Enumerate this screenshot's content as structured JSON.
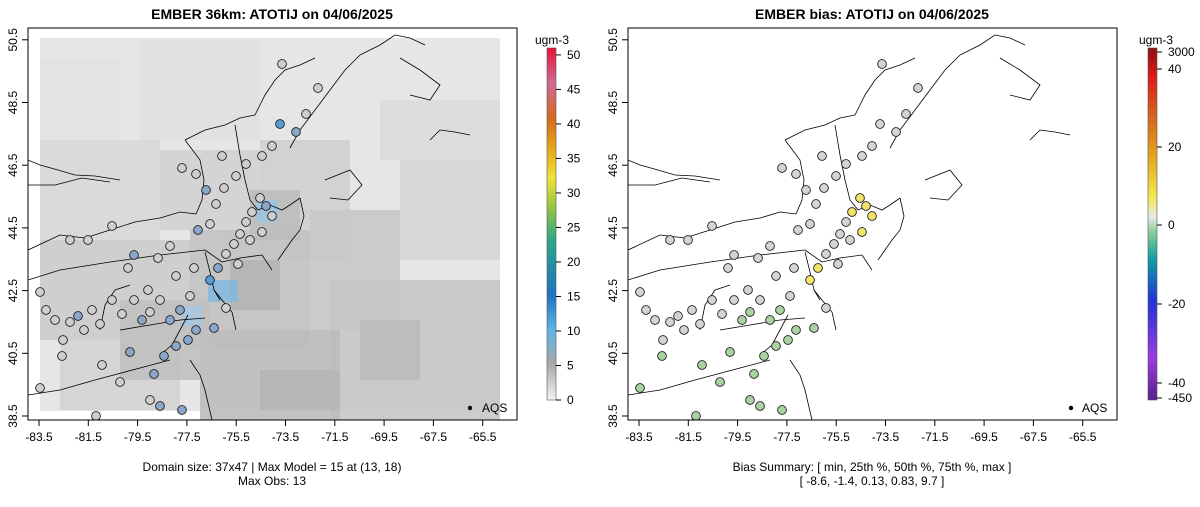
{
  "left_panel": {
    "title": "EMBER 36km: ATOTIJ on 04/06/2025",
    "x_ticks": [
      "-83.5",
      "-81.5",
      "-79.5",
      "-77.5",
      "-75.5",
      "-73.5",
      "-71.5",
      "-69.5",
      "-67.5",
      "-65.5"
    ],
    "y_ticks": [
      "38.5",
      "40.5",
      "42.5",
      "44.5",
      "46.5",
      "48.5",
      "50.5"
    ],
    "legend_label": "AQS",
    "caption_line1": "Domain size: 37x47 | Max Model = 15 at (13, 18)",
    "caption_line2": "Max Obs: 13",
    "colorbar": {
      "unit": "ugm-3",
      "ticks": [
        "0",
        "5",
        "10",
        "15",
        "20",
        "25",
        "30",
        "35",
        "40",
        "45",
        "50"
      ],
      "tick_values": [
        0,
        5,
        10,
        15,
        20,
        25,
        30,
        35,
        40,
        45,
        50
      ],
      "range": [
        0,
        51
      ]
    }
  },
  "right_panel": {
    "title": "EMBER bias: ATOTIJ on 04/06/2025",
    "x_ticks": [
      "-83.5",
      "-81.5",
      "-79.5",
      "-77.5",
      "-75.5",
      "-73.5",
      "-71.5",
      "-69.5",
      "-67.5",
      "-65.5"
    ],
    "y_ticks": [
      "38.5",
      "40.5",
      "42.5",
      "44.5",
      "46.5",
      "48.5",
      "50.5"
    ],
    "legend_label": "AQS",
    "caption_line1": "Bias Summary: [ min, 25th %, 50th %, 75th %, max ]",
    "caption_line2": "[ -8.6,   -1.4,   0.13,   0.83,   9.7 ]",
    "colorbar": {
      "unit": "ugm-3",
      "ticks": [
        "3000",
        "40",
        "20",
        "0",
        "-20",
        "-40",
        "-450"
      ]
    }
  },
  "colors": {
    "obs_low": "#cfcfcf",
    "obs_mid": "#8aa6c8",
    "obs_high": "#5b9bd5",
    "bias_pos": "#f2e36a",
    "bias_neg": "#a9d3a0"
  }
}
